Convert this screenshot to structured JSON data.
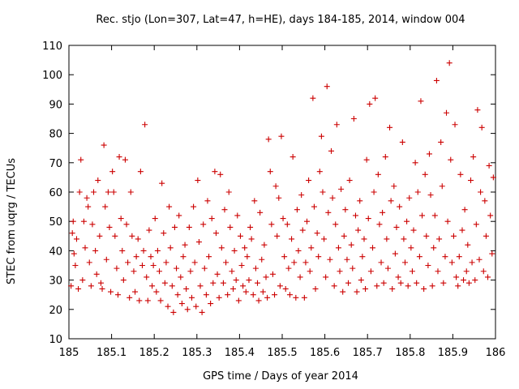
{
  "chart_data": {
    "type": "scatter",
    "title": "Rec. stjo (Lon=307, Lat=47, h=HE), days 184-185, 2014, window 004",
    "xlabel": "GPS time / Days of year 2014",
    "ylabel": "STEC from uqrg / TECUs",
    "xlim": [
      185,
      186
    ],
    "ylim": [
      10,
      110
    ],
    "xticks": [
      "185",
      "185.1",
      "185.2",
      "185.3",
      "185.4",
      "185.5",
      "185.6",
      "185.7",
      "185.8",
      "185.9",
      "186"
    ],
    "yticks": [
      "10",
      "20",
      "30",
      "40",
      "50",
      "60",
      "70",
      "80",
      "90",
      "100",
      "110"
    ],
    "grid": false,
    "legend": false,
    "marker": "plus",
    "color": "#cc0000",
    "series": [
      {
        "points": [
          [
            185.005,
            28
          ],
          [
            185.008,
            46
          ],
          [
            185.01,
            50
          ],
          [
            185.012,
            39
          ],
          [
            185.015,
            35
          ],
          [
            185.018,
            44
          ],
          [
            185.022,
            27
          ],
          [
            185.025,
            60
          ],
          [
            185.028,
            71
          ],
          [
            185.032,
            30
          ],
          [
            185.035,
            50
          ],
          [
            185.038,
            41
          ],
          [
            185.042,
            58
          ],
          [
            185.045,
            55
          ],
          [
            185.048,
            36
          ],
          [
            185.052,
            28
          ],
          [
            185.055,
            49
          ],
          [
            185.058,
            60
          ],
          [
            185.062,
            40
          ],
          [
            185.065,
            32
          ],
          [
            185.068,
            64
          ],
          [
            185.072,
            45
          ],
          [
            185.075,
            29
          ],
          [
            185.078,
            27
          ],
          [
            185.082,
            76
          ],
          [
            185.085,
            55
          ],
          [
            185.088,
            37
          ],
          [
            185.092,
            60
          ],
          [
            185.095,
            48
          ],
          [
            185.098,
            26
          ],
          [
            185.102,
            67
          ],
          [
            185.105,
            60
          ],
          [
            185.108,
            45
          ],
          [
            185.112,
            34
          ],
          [
            185.115,
            25
          ],
          [
            185.118,
            72
          ],
          [
            185.122,
            51
          ],
          [
            185.125,
            40
          ],
          [
            185.128,
            30
          ],
          [
            185.132,
            71
          ],
          [
            185.135,
            49
          ],
          [
            185.138,
            36
          ],
          [
            185.142,
            24
          ],
          [
            185.145,
            60
          ],
          [
            185.148,
            45
          ],
          [
            185.152,
            33
          ],
          [
            185.155,
            26
          ],
          [
            185.158,
            38
          ],
          [
            185.162,
            44
          ],
          [
            185.165,
            23
          ],
          [
            185.168,
            67
          ],
          [
            185.172,
            35
          ],
          [
            185.175,
            40
          ],
          [
            185.178,
            83
          ],
          [
            185.182,
            31
          ],
          [
            185.185,
            23
          ],
          [
            185.188,
            47
          ],
          [
            185.192,
            38
          ],
          [
            185.195,
            28
          ],
          [
            185.198,
            35
          ],
          [
            185.202,
            51
          ],
          [
            185.205,
            26
          ],
          [
            185.208,
            40
          ],
          [
            185.212,
            33
          ],
          [
            185.215,
            23
          ],
          [
            185.218,
            63
          ],
          [
            185.222,
            46
          ],
          [
            185.225,
            29
          ],
          [
            185.228,
            36
          ],
          [
            185.232,
            21
          ],
          [
            185.235,
            55
          ],
          [
            185.238,
            41
          ],
          [
            185.242,
            28
          ],
          [
            185.245,
            19
          ],
          [
            185.248,
            48
          ],
          [
            185.252,
            34
          ],
          [
            185.255,
            25
          ],
          [
            185.258,
            52
          ],
          [
            185.262,
            31
          ],
          [
            185.265,
            22
          ],
          [
            185.268,
            38
          ],
          [
            185.272,
            42
          ],
          [
            185.275,
            27
          ],
          [
            185.278,
            20
          ],
          [
            185.282,
            48
          ],
          [
            185.285,
            33
          ],
          [
            185.288,
            24
          ],
          [
            185.292,
            55
          ],
          [
            185.295,
            36
          ],
          [
            185.298,
            21
          ],
          [
            185.302,
            64
          ],
          [
            185.305,
            43
          ],
          [
            185.308,
            28
          ],
          [
            185.312,
            19
          ],
          [
            185.315,
            49
          ],
          [
            185.318,
            34
          ],
          [
            185.322,
            25
          ],
          [
            185.325,
            57
          ],
          [
            185.328,
            38
          ],
          [
            185.332,
            22
          ],
          [
            185.335,
            51
          ],
          [
            185.338,
            29
          ],
          [
            185.342,
            67
          ],
          [
            185.345,
            46
          ],
          [
            185.348,
            32
          ],
          [
            185.352,
            24
          ],
          [
            185.355,
            66
          ],
          [
            185.358,
            41
          ],
          [
            185.362,
            29
          ],
          [
            185.365,
            54
          ],
          [
            185.368,
            36
          ],
          [
            185.372,
            25
          ],
          [
            185.375,
            60
          ],
          [
            185.378,
            48
          ],
          [
            185.382,
            33
          ],
          [
            185.385,
            27
          ],
          [
            185.388,
            40
          ],
          [
            185.392,
            30
          ],
          [
            185.395,
            52
          ],
          [
            185.398,
            23
          ],
          [
            185.402,
            45
          ],
          [
            185.405,
            35
          ],
          [
            185.408,
            28
          ],
          [
            185.412,
            41
          ],
          [
            185.415,
            26
          ],
          [
            185.418,
            38
          ],
          [
            185.422,
            30
          ],
          [
            185.425,
            48
          ],
          [
            185.428,
            44
          ],
          [
            185.432,
            25
          ],
          [
            185.435,
            57
          ],
          [
            185.438,
            34
          ],
          [
            185.442,
            29
          ],
          [
            185.445,
            23
          ],
          [
            185.448,
            53
          ],
          [
            185.452,
            37
          ],
          [
            185.455,
            26
          ],
          [
            185.458,
            42
          ],
          [
            185.462,
            31
          ],
          [
            185.465,
            24
          ],
          [
            185.468,
            78
          ],
          [
            185.472,
            67
          ],
          [
            185.475,
            49
          ],
          [
            185.478,
            32
          ],
          [
            185.482,
            25
          ],
          [
            185.485,
            62
          ],
          [
            185.488,
            45
          ],
          [
            185.492,
            58
          ],
          [
            185.495,
            28
          ],
          [
            185.498,
            79
          ],
          [
            185.502,
            51
          ],
          [
            185.505,
            38
          ],
          [
            185.508,
            27
          ],
          [
            185.512,
            49
          ],
          [
            185.515,
            34
          ],
          [
            185.518,
            25
          ],
          [
            185.522,
            44
          ],
          [
            185.525,
            72
          ],
          [
            185.528,
            36
          ],
          [
            185.532,
            24
          ],
          [
            185.535,
            54
          ],
          [
            185.538,
            40
          ],
          [
            185.542,
            31
          ],
          [
            185.545,
            59
          ],
          [
            185.548,
            47
          ],
          [
            185.552,
            24
          ],
          [
            185.555,
            36
          ],
          [
            185.558,
            50
          ],
          [
            185.562,
            64
          ],
          [
            185.565,
            33
          ],
          [
            185.568,
            41
          ],
          [
            185.572,
            92
          ],
          [
            185.575,
            55
          ],
          [
            185.578,
            27
          ],
          [
            185.582,
            46
          ],
          [
            185.585,
            38
          ],
          [
            185.588,
            67
          ],
          [
            185.592,
            79
          ],
          [
            185.595,
            60
          ],
          [
            185.598,
            44
          ],
          [
            185.602,
            31
          ],
          [
            185.605,
            96
          ],
          [
            185.608,
            53
          ],
          [
            185.612,
            37
          ],
          [
            185.615,
            74
          ],
          [
            185.618,
            58
          ],
          [
            185.622,
            28
          ],
          [
            185.625,
            49
          ],
          [
            185.628,
            83
          ],
          [
            185.632,
            41
          ],
          [
            185.635,
            33
          ],
          [
            185.638,
            61
          ],
          [
            185.642,
            26
          ],
          [
            185.645,
            45
          ],
          [
            185.648,
            54
          ],
          [
            185.652,
            37
          ],
          [
            185.655,
            29
          ],
          [
            185.658,
            64
          ],
          [
            185.662,
            42
          ],
          [
            185.665,
            34
          ],
          [
            185.668,
            85
          ],
          [
            185.672,
            52
          ],
          [
            185.675,
            26
          ],
          [
            185.678,
            47
          ],
          [
            185.682,
            57
          ],
          [
            185.685,
            30
          ],
          [
            185.688,
            38
          ],
          [
            185.692,
            44
          ],
          [
            185.695,
            27
          ],
          [
            185.698,
            71
          ],
          [
            185.702,
            51
          ],
          [
            185.705,
            90
          ],
          [
            185.708,
            33
          ],
          [
            185.712,
            41
          ],
          [
            185.715,
            60
          ],
          [
            185.718,
            92
          ],
          [
            185.722,
            28
          ],
          [
            185.725,
            66
          ],
          [
            185.728,
            49
          ],
          [
            185.732,
            36
          ],
          [
            185.735,
            53
          ],
          [
            185.738,
            29
          ],
          [
            185.742,
            72
          ],
          [
            185.745,
            44
          ],
          [
            185.748,
            34
          ],
          [
            185.752,
            82
          ],
          [
            185.755,
            57
          ],
          [
            185.758,
            27
          ],
          [
            185.762,
            62
          ],
          [
            185.765,
            39
          ],
          [
            185.768,
            48
          ],
          [
            185.772,
            31
          ],
          [
            185.775,
            55
          ],
          [
            185.778,
            29
          ],
          [
            185.782,
            77
          ],
          [
            185.785,
            44
          ],
          [
            185.788,
            36
          ],
          [
            185.792,
            50
          ],
          [
            185.795,
            28
          ],
          [
            185.798,
            58
          ],
          [
            185.802,
            41
          ],
          [
            185.805,
            33
          ],
          [
            185.808,
            47
          ],
          [
            185.812,
            70
          ],
          [
            185.815,
            29
          ],
          [
            185.818,
            60
          ],
          [
            185.822,
            38
          ],
          [
            185.825,
            91
          ],
          [
            185.828,
            52
          ],
          [
            185.832,
            27
          ],
          [
            185.835,
            66
          ],
          [
            185.838,
            45
          ],
          [
            185.842,
            35
          ],
          [
            185.845,
            73
          ],
          [
            185.848,
            59
          ],
          [
            185.852,
            28
          ],
          [
            185.855,
            41
          ],
          [
            185.858,
            52
          ],
          [
            185.862,
            98
          ],
          [
            185.865,
            33
          ],
          [
            185.868,
            44
          ],
          [
            185.872,
            77
          ],
          [
            185.875,
            62
          ],
          [
            185.878,
            29
          ],
          [
            185.882,
            38
          ],
          [
            185.885,
            87
          ],
          [
            185.888,
            50
          ],
          [
            185.892,
            104
          ],
          [
            185.895,
            71
          ],
          [
            185.898,
            36
          ],
          [
            185.902,
            45
          ],
          [
            185.905,
            83
          ],
          [
            185.908,
            31
          ],
          [
            185.912,
            28
          ],
          [
            185.915,
            38
          ],
          [
            185.918,
            66
          ],
          [
            185.922,
            47
          ],
          [
            185.925,
            30
          ],
          [
            185.928,
            54
          ],
          [
            185.932,
            33
          ],
          [
            185.935,
            42
          ],
          [
            185.938,
            29
          ],
          [
            185.942,
            64
          ],
          [
            185.945,
            36
          ],
          [
            185.948,
            72
          ],
          [
            185.952,
            30
          ],
          [
            185.955,
            49
          ],
          [
            185.958,
            88
          ],
          [
            185.962,
            37
          ],
          [
            185.965,
            60
          ],
          [
            185.968,
            82
          ],
          [
            185.972,
            33
          ],
          [
            185.975,
            57
          ],
          [
            185.978,
            45
          ],
          [
            185.982,
            31
          ],
          [
            185.985,
            69
          ],
          [
            185.988,
            52
          ],
          [
            185.992,
            39
          ],
          [
            185.995,
            65
          ]
        ]
      }
    ]
  }
}
